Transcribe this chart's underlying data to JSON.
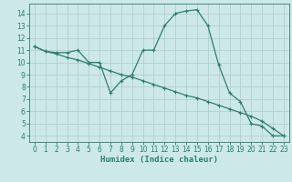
{
  "line1_x": [
    0,
    1,
    2,
    3,
    4,
    5,
    6,
    7,
    8,
    9,
    10,
    11,
    12,
    13,
    14,
    15,
    16,
    17,
    18,
    19,
    20,
    21,
    22,
    23
  ],
  "line1_y": [
    11.3,
    10.9,
    10.8,
    10.8,
    11.0,
    10.0,
    10.0,
    7.5,
    8.5,
    9.0,
    11.0,
    11.0,
    13.0,
    14.0,
    14.2,
    14.3,
    13.0,
    9.8,
    7.5,
    6.8,
    5.0,
    4.8,
    4.0,
    4.0
  ],
  "line2_x": [
    0,
    1,
    2,
    3,
    4,
    5,
    6,
    7,
    8,
    9,
    10,
    11,
    12,
    13,
    14,
    15,
    16,
    17,
    18,
    19,
    20,
    21,
    22,
    23
  ],
  "line2_y": [
    11.3,
    10.9,
    10.7,
    10.4,
    10.2,
    9.9,
    9.6,
    9.3,
    9.0,
    8.8,
    8.5,
    8.2,
    7.9,
    7.6,
    7.3,
    7.1,
    6.8,
    6.5,
    6.2,
    5.9,
    5.6,
    5.2,
    4.6,
    4.0
  ],
  "line_color": "#2e7d6e",
  "bg_color": "#cde8e8",
  "grid_color": "#b0cfcf",
  "xlabel": "Humidex (Indice chaleur)",
  "xlabel_fontsize": 6.5,
  "tick_fontsize": 5.5,
  "xlim": [
    -0.5,
    23.5
  ],
  "ylim": [
    3.5,
    14.8
  ],
  "yticks": [
    4,
    5,
    6,
    7,
    8,
    9,
    10,
    11,
    12,
    13,
    14
  ],
  "xticks": [
    0,
    1,
    2,
    3,
    4,
    5,
    6,
    7,
    8,
    9,
    10,
    11,
    12,
    13,
    14,
    15,
    16,
    17,
    18,
    19,
    20,
    21,
    22,
    23
  ]
}
